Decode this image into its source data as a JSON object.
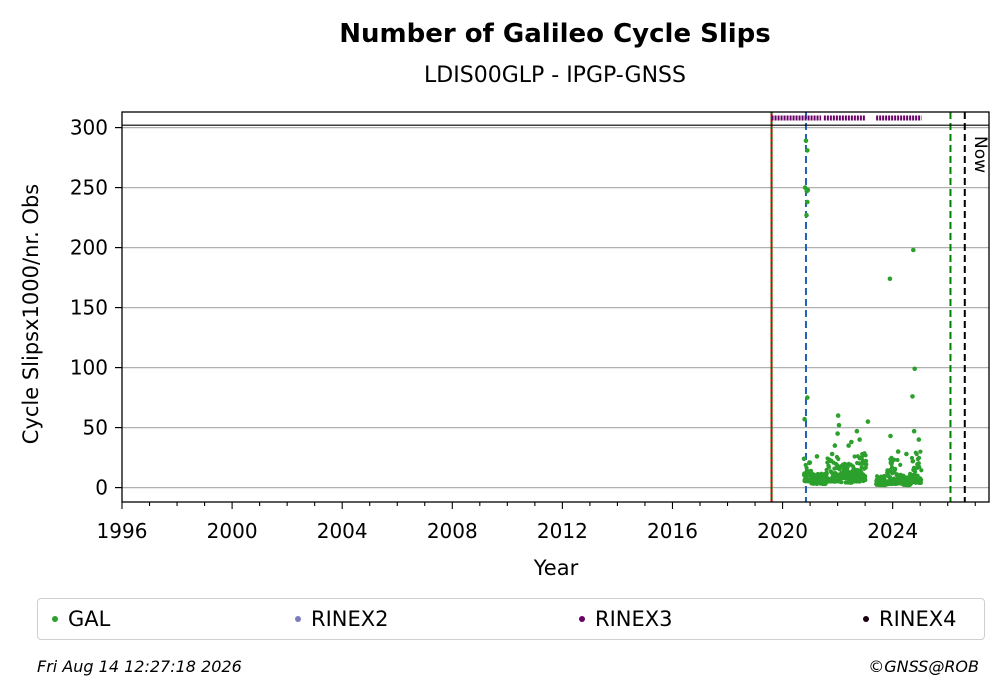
{
  "chart_data": {
    "type": "scatter",
    "title": "Number of Galileo Cycle Slips",
    "subtitle": "LDIS00GLP - IPGP-GNSS",
    "xlabel": "Year",
    "ylabel": "Cycle Slipsx1000/nr. Obs",
    "xlim": [
      1996,
      2027.5
    ],
    "ylim": [
      -12,
      313
    ],
    "x_ticks": [
      1996,
      2000,
      2004,
      2008,
      2012,
      2016,
      2020,
      2024
    ],
    "y_ticks": [
      0,
      50,
      100,
      150,
      200,
      250,
      300
    ],
    "grid": "horizontal",
    "legend_placement": "bottom",
    "now_label": "Now",
    "reference_lines": [
      {
        "x": 2019.6,
        "color": "#cc0000",
        "style": "solid"
      },
      {
        "x": 2019.6,
        "color": "#008000",
        "style": "dotted"
      },
      {
        "x": 2020.85,
        "color": "#1f5fb4",
        "style": "dashed"
      },
      {
        "x": 2026.1,
        "color": "#008000",
        "style": "dashed"
      },
      {
        "x": 2026.62,
        "color": "#000000",
        "style": "dashed"
      }
    ],
    "rinex3_segments": [
      [
        2019.6,
        2021.4
      ],
      [
        2021.5,
        2023.0
      ],
      [
        2023.4,
        2025.05
      ]
    ],
    "series": [
      {
        "name": "GAL",
        "color": "#2ca02c",
        "points": [
          [
            2020.85,
            289
          ],
          [
            2020.9,
            281
          ],
          [
            2020.82,
            250
          ],
          [
            2020.88,
            247
          ],
          [
            2020.92,
            248
          ],
          [
            2020.9,
            238
          ],
          [
            2020.87,
            227
          ],
          [
            2020.9,
            75
          ],
          [
            2020.8,
            57
          ],
          [
            2020.78,
            24
          ],
          [
            2021.25,
            26
          ],
          [
            2021.8,
            28
          ],
          [
            2021.9,
            35
          ],
          [
            2022.0,
            45
          ],
          [
            2022.05,
            52
          ],
          [
            2022.02,
            60
          ],
          [
            2022.4,
            35
          ],
          [
            2022.5,
            38
          ],
          [
            2022.7,
            47
          ],
          [
            2022.8,
            40
          ],
          [
            2023.1,
            55
          ],
          [
            2023.9,
            174
          ],
          [
            2023.92,
            43
          ],
          [
            2024.75,
            198
          ],
          [
            2024.8,
            99
          ],
          [
            2024.72,
            76
          ],
          [
            2024.78,
            47
          ],
          [
            2024.95,
            40
          ],
          [
            2024.5,
            28
          ],
          [
            2024.2,
            30
          ]
        ],
        "bands": [
          {
            "x0": 2020.78,
            "x1": 2021.05,
            "ymin": 5,
            "ymax": 22
          },
          {
            "x0": 2021.05,
            "x1": 2021.6,
            "ymin": 3,
            "ymax": 12
          },
          {
            "x0": 2021.6,
            "x1": 2022.1,
            "ymin": 5,
            "ymax": 28
          },
          {
            "x0": 2022.1,
            "x1": 2022.6,
            "ymin": 4,
            "ymax": 20
          },
          {
            "x0": 2022.6,
            "x1": 2023.05,
            "ymin": 5,
            "ymax": 30
          },
          {
            "x0": 2023.4,
            "x1": 2023.8,
            "ymin": 2,
            "ymax": 10
          },
          {
            "x0": 2023.8,
            "x1": 2024.3,
            "ymin": 3,
            "ymax": 25
          },
          {
            "x0": 2024.3,
            "x1": 2024.7,
            "ymin": 2,
            "ymax": 12
          },
          {
            "x0": 2024.7,
            "x1": 2025.05,
            "ymin": 4,
            "ymax": 30
          }
        ]
      },
      {
        "name": "RINEX2",
        "color": "#7b7bbf",
        "points": []
      },
      {
        "name": "RINEX3",
        "color": "#6a0068",
        "points": []
      },
      {
        "name": "RINEX4",
        "color": "#1a0010",
        "points": []
      }
    ]
  },
  "footer": {
    "timestamp": "Fri Aug 14 12:27:18 2026",
    "credit": "©GNSS@ROB"
  }
}
